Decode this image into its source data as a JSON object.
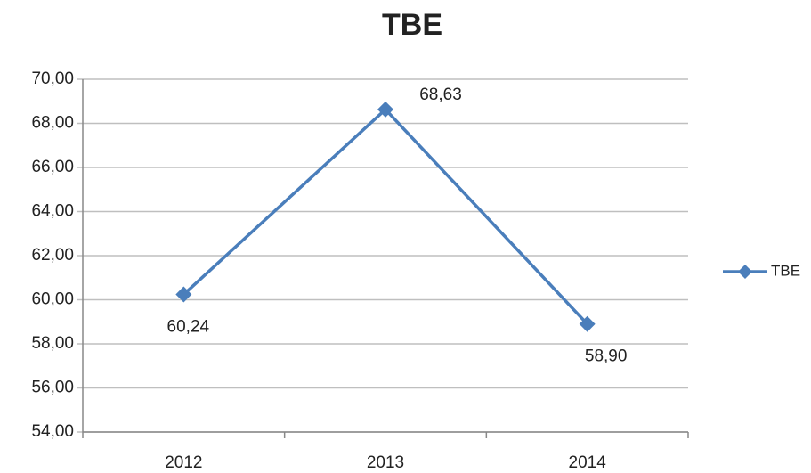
{
  "chart_data": {
    "type": "line",
    "title": "TBE",
    "categories": [
      "2012",
      "2013",
      "2014"
    ],
    "series": [
      {
        "name": "TBE",
        "color": "#4a7ebb",
        "values": [
          60.24,
          68.63,
          58.9
        ],
        "value_labels": [
          "60,24",
          "68,63",
          "58,90"
        ]
      }
    ],
    "ylim": [
      54,
      70
    ],
    "yticks": [
      {
        "value": 54,
        "label": "54,00"
      },
      {
        "value": 56,
        "label": "56,00"
      },
      {
        "value": 58,
        "label": "58,00"
      },
      {
        "value": 60,
        "label": "60,00"
      },
      {
        "value": 62,
        "label": "62,00"
      },
      {
        "value": 64,
        "label": "64,00"
      },
      {
        "value": 66,
        "label": "66,00"
      },
      {
        "value": 68,
        "label": "68,00"
      },
      {
        "value": 70,
        "label": "70,00"
      }
    ],
    "grid": true,
    "legend": "right"
  }
}
